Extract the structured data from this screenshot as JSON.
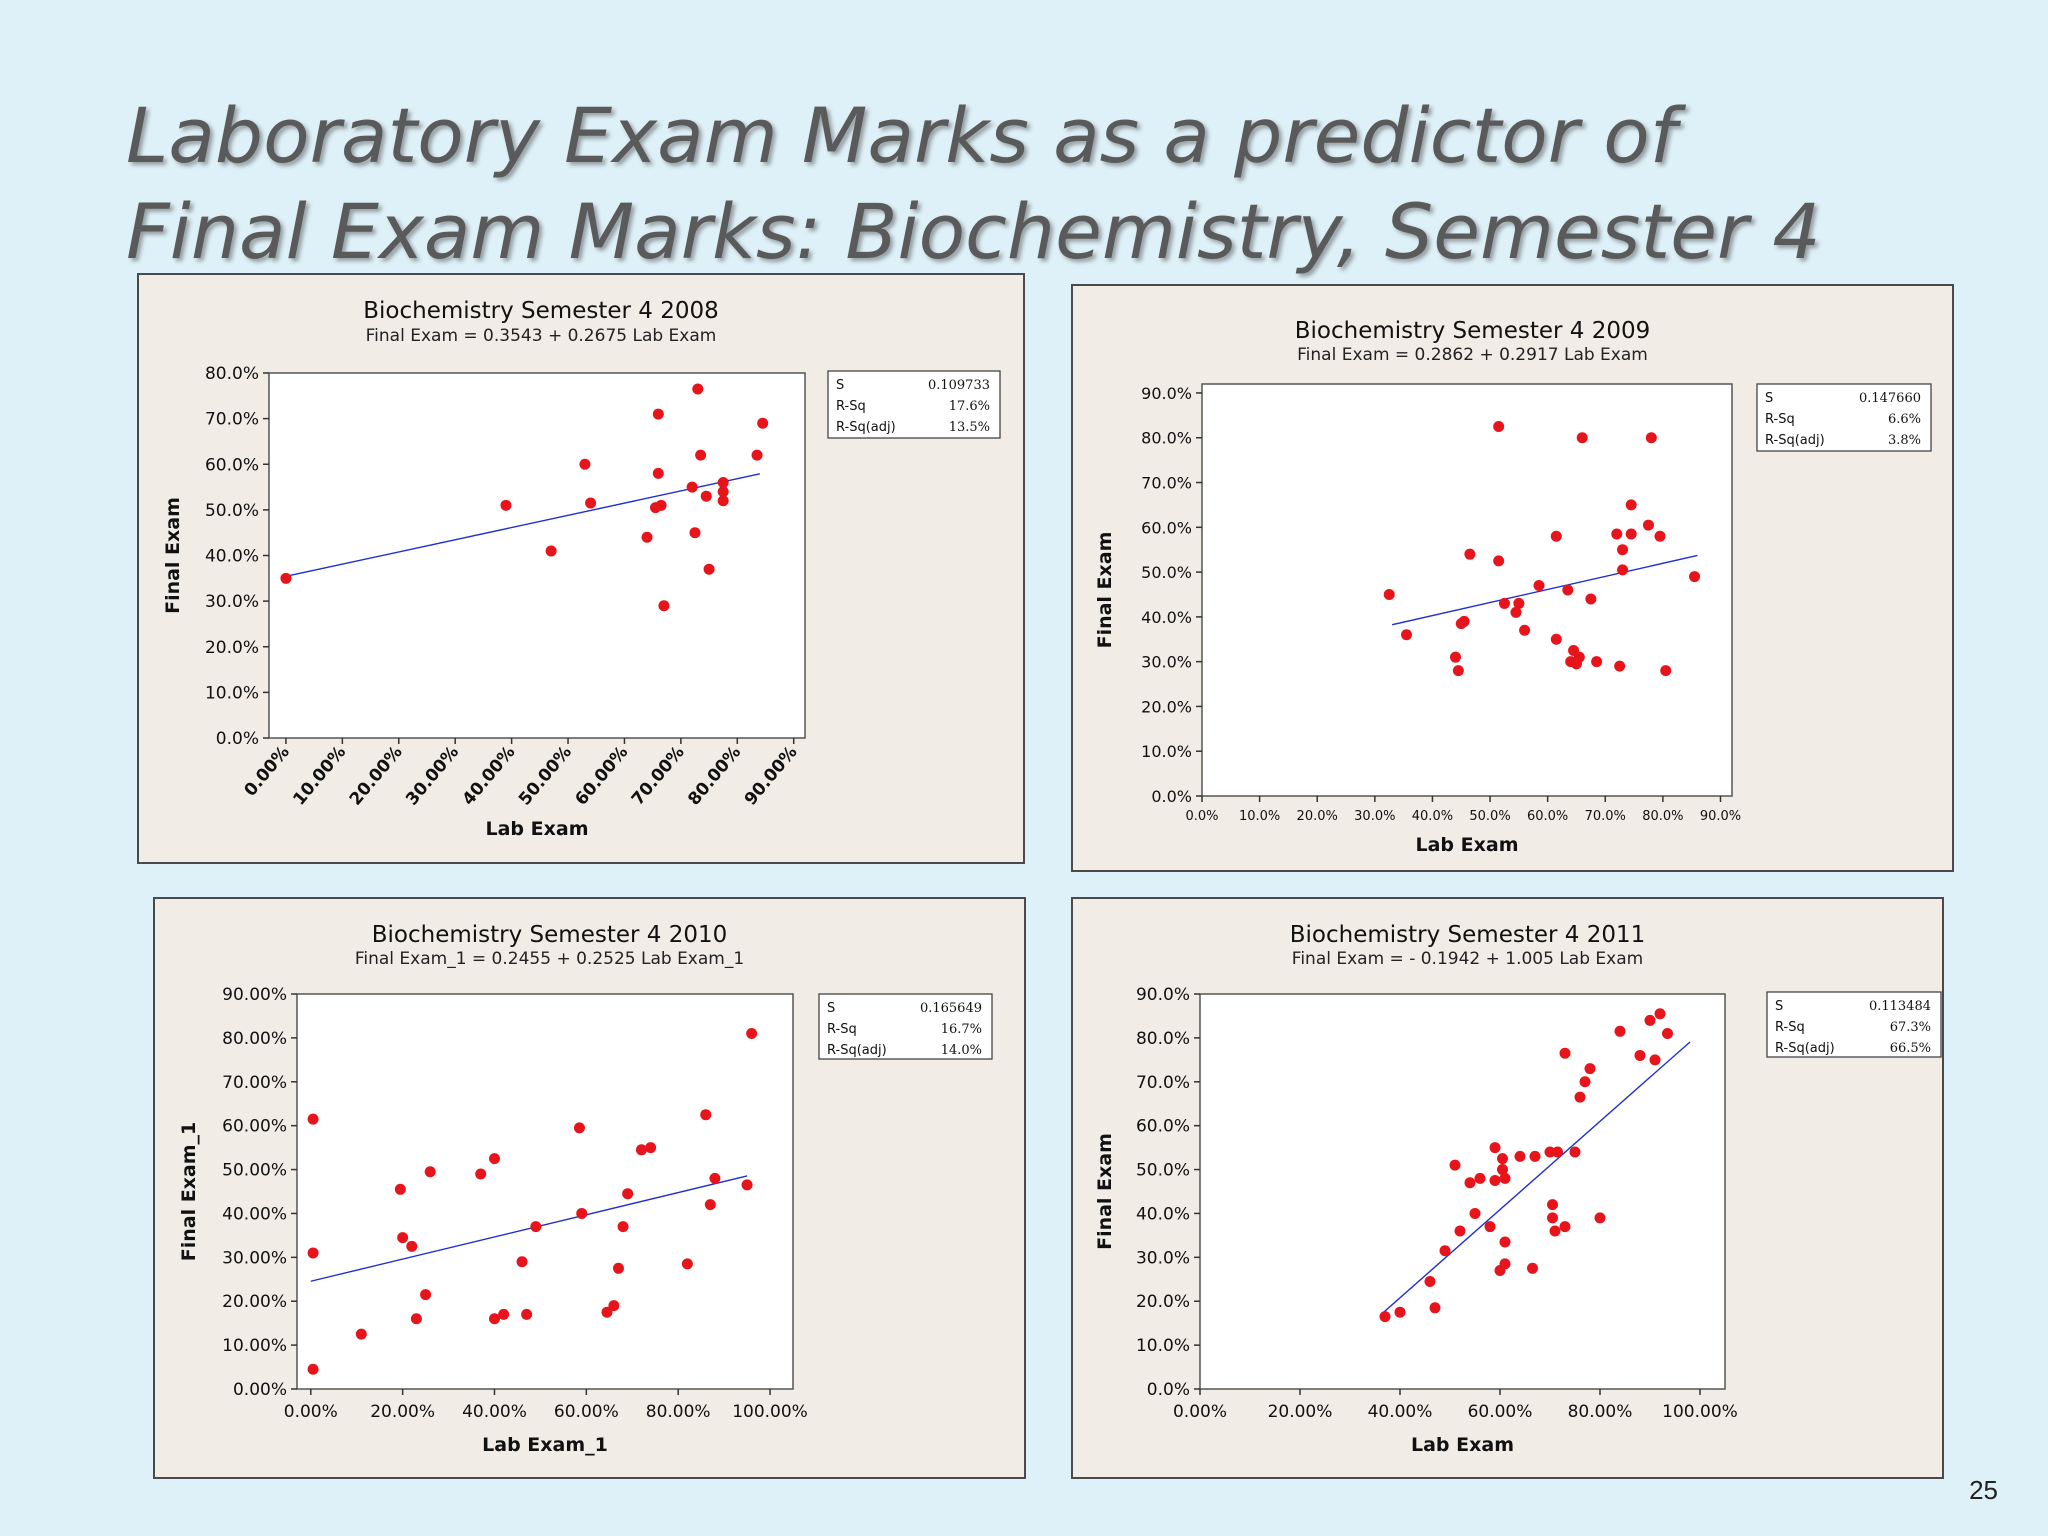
{
  "slide": {
    "title_line1": "Laboratory  Exam Marks as a predictor of",
    "title_line2": "Final Exam Marks: Biochemistry, Semester 4",
    "page_number": "25"
  },
  "colors": {
    "point": "#e8141b",
    "fit_line": "#1f2fcf",
    "panel_bg": "#f1ece5",
    "slide_bg": "#dff1f8"
  },
  "chart_data": [
    {
      "type": "scatter",
      "title": "Biochemistry Semester 4 2008",
      "equation": "Final Exam =  0.3543 + 0.2675 Lab Exam",
      "xlabel": "Lab Exam",
      "ylabel": "Final Exam",
      "xlim": [
        -0.03,
        0.92
      ],
      "ylim": [
        0,
        0.8
      ],
      "xticks": [
        0,
        0.1,
        0.2,
        0.3,
        0.4,
        0.5,
        0.6,
        0.7,
        0.8,
        0.9
      ],
      "xtick_labels": [
        "0.00%",
        "10.00%",
        "20.00%",
        "30.00%",
        "40.00%",
        "50.00%",
        "60.00%",
        "70.00%",
        "80.00%",
        "90.00%"
      ],
      "yticks": [
        0,
        0.1,
        0.2,
        0.3,
        0.4,
        0.5,
        0.6,
        0.7,
        0.8
      ],
      "ytick_labels": [
        "0.0%",
        "10.0%",
        "20.0%",
        "30.0%",
        "40.0%",
        "50.0%",
        "60.0%",
        "70.0%",
        "80.0%"
      ],
      "fit": {
        "intercept": 0.3543,
        "slope": 0.2675,
        "x_range": [
          0,
          0.84
        ]
      },
      "stats": [
        [
          "S",
          "0.109733"
        ],
        [
          "R-Sq",
          "17.6%"
        ],
        [
          "R-Sq(adj)",
          "13.5%"
        ]
      ],
      "points": [
        [
          0.0,
          0.35
        ],
        [
          0.39,
          0.51
        ],
        [
          0.47,
          0.41
        ],
        [
          0.53,
          0.6
        ],
        [
          0.54,
          0.515
        ],
        [
          0.64,
          0.44
        ],
        [
          0.655,
          0.505
        ],
        [
          0.66,
          0.71
        ],
        [
          0.66,
          0.58
        ],
        [
          0.665,
          0.51
        ],
        [
          0.67,
          0.29
        ],
        [
          0.72,
          0.55
        ],
        [
          0.725,
          0.45
        ],
        [
          0.73,
          0.765
        ],
        [
          0.735,
          0.62
        ],
        [
          0.745,
          0.53
        ],
        [
          0.75,
          0.37
        ],
        [
          0.775,
          0.52
        ],
        [
          0.775,
          0.54
        ],
        [
          0.775,
          0.56
        ],
        [
          0.835,
          0.62
        ],
        [
          0.845,
          0.69
        ]
      ]
    },
    {
      "type": "scatter",
      "title": "Biochemistry Semester 4 2009",
      "equation": "Final Exam =  0.2862 + 0.2917 Lab Exam",
      "xlabel": "Lab Exam",
      "ylabel": "Final Exam",
      "xlim": [
        0,
        0.92
      ],
      "ylim": [
        0,
        0.92
      ],
      "xticks": [
        0,
        0.1,
        0.2,
        0.3,
        0.4,
        0.5,
        0.6,
        0.7,
        0.8,
        0.9
      ],
      "xtick_labels": [
        "0.0%",
        "10.0%",
        "20.0%",
        "30.0%",
        "40.0%",
        "50.0%",
        "60.0%",
        "70.0%",
        "80.0%",
        "90.0%"
      ],
      "yticks": [
        0,
        0.1,
        0.2,
        0.3,
        0.4,
        0.5,
        0.6,
        0.7,
        0.8,
        0.9
      ],
      "ytick_labels": [
        "0.0%",
        "10.0%",
        "20.0%",
        "30.0%",
        "40.0%",
        "50.0%",
        "60.0%",
        "70.0%",
        "80.0%",
        "90.0%"
      ],
      "fit": {
        "intercept": 0.2862,
        "slope": 0.2917,
        "x_range": [
          0.33,
          0.86
        ]
      },
      "stats": [
        [
          "S",
          "0.147660"
        ],
        [
          "R-Sq",
          "6.6%"
        ],
        [
          "R-Sq(adj)",
          "3.8%"
        ]
      ],
      "points": [
        [
          0.325,
          0.45
        ],
        [
          0.355,
          0.36
        ],
        [
          0.44,
          0.31
        ],
        [
          0.445,
          0.28
        ],
        [
          0.45,
          0.385
        ],
        [
          0.455,
          0.39
        ],
        [
          0.465,
          0.54
        ],
        [
          0.515,
          0.825
        ],
        [
          0.515,
          0.525
        ],
        [
          0.525,
          0.43
        ],
        [
          0.545,
          0.41
        ],
        [
          0.55,
          0.43
        ],
        [
          0.56,
          0.37
        ],
        [
          0.585,
          0.47
        ],
        [
          0.615,
          0.35
        ],
        [
          0.615,
          0.58
        ],
        [
          0.635,
          0.46
        ],
        [
          0.64,
          0.3
        ],
        [
          0.645,
          0.325
        ],
        [
          0.65,
          0.295
        ],
        [
          0.655,
          0.31
        ],
        [
          0.66,
          0.8
        ],
        [
          0.675,
          0.44
        ],
        [
          0.685,
          0.3
        ],
        [
          0.72,
          0.585
        ],
        [
          0.725,
          0.29
        ],
        [
          0.73,
          0.505
        ],
        [
          0.73,
          0.55
        ],
        [
          0.745,
          0.585
        ],
        [
          0.745,
          0.65
        ],
        [
          0.775,
          0.605
        ],
        [
          0.78,
          0.8
        ],
        [
          0.795,
          0.58
        ],
        [
          0.805,
          0.28
        ],
        [
          0.855,
          0.49
        ]
      ]
    },
    {
      "type": "scatter",
      "title": "Biochemistry Semester 4 2010",
      "equation": "Final Exam_1 =  0.2455 + 0.2525 Lab Exam_1",
      "xlabel": "Lab Exam_1",
      "ylabel": "Final Exam_1",
      "xlim": [
        -0.03,
        1.05
      ],
      "ylim": [
        0,
        0.9
      ],
      "xticks": [
        0,
        0.2,
        0.4,
        0.6,
        0.8,
        1.0
      ],
      "xtick_labels": [
        "0.00%",
        "20.00%",
        "40.00%",
        "60.00%",
        "80.00%",
        "100.00%"
      ],
      "yticks": [
        0,
        0.1,
        0.2,
        0.3,
        0.4,
        0.5,
        0.6,
        0.7,
        0.8,
        0.9
      ],
      "ytick_labels": [
        "0.00%",
        "10.00%",
        "20.00%",
        "30.00%",
        "40.00%",
        "50.00%",
        "60.00%",
        "70.00%",
        "80.00%",
        "90.00%"
      ],
      "fit": {
        "intercept": 0.2455,
        "slope": 0.2525,
        "x_range": [
          0,
          0.95
        ]
      },
      "stats": [
        [
          "S",
          "0.165649"
        ],
        [
          "R-Sq",
          "16.7%"
        ],
        [
          "R-Sq(adj)",
          "14.0%"
        ]
      ],
      "points": [
        [
          0.005,
          0.615
        ],
        [
          0.005,
          0.31
        ],
        [
          0.005,
          0.045
        ],
        [
          0.11,
          0.125
        ],
        [
          0.195,
          0.455
        ],
        [
          0.2,
          0.345
        ],
        [
          0.22,
          0.325
        ],
        [
          0.23,
          0.16
        ],
        [
          0.25,
          0.215
        ],
        [
          0.26,
          0.495
        ],
        [
          0.37,
          0.49
        ],
        [
          0.4,
          0.525
        ],
        [
          0.4,
          0.16
        ],
        [
          0.42,
          0.17
        ],
        [
          0.46,
          0.29
        ],
        [
          0.47,
          0.17
        ],
        [
          0.49,
          0.37
        ],
        [
          0.585,
          0.595
        ],
        [
          0.59,
          0.4
        ],
        [
          0.645,
          0.175
        ],
        [
          0.66,
          0.19
        ],
        [
          0.67,
          0.275
        ],
        [
          0.68,
          0.37
        ],
        [
          0.69,
          0.445
        ],
        [
          0.72,
          0.545
        ],
        [
          0.74,
          0.55
        ],
        [
          0.82,
          0.285
        ],
        [
          0.86,
          0.625
        ],
        [
          0.87,
          0.42
        ],
        [
          0.88,
          0.48
        ],
        [
          0.95,
          0.465
        ],
        [
          0.96,
          0.81
        ]
      ]
    },
    {
      "type": "scatter",
      "title": "Biochemistry Semester 4 2011",
      "equation": "Final Exam =  - 0.1942 + 1.005 Lab Exam",
      "xlabel": "Lab Exam",
      "ylabel": "Final Exam",
      "xlim": [
        0,
        1.05
      ],
      "ylim": [
        0,
        0.9
      ],
      "xticks": [
        0,
        0.2,
        0.4,
        0.6,
        0.8,
        1.0
      ],
      "xtick_labels": [
        "0.00%",
        "20.00%",
        "40.00%",
        "60.00%",
        "80.00%",
        "100.00%"
      ],
      "yticks": [
        0,
        0.1,
        0.2,
        0.3,
        0.4,
        0.5,
        0.6,
        0.7,
        0.8,
        0.9
      ],
      "ytick_labels": [
        "0.0%",
        "10.0%",
        "20.0%",
        "30.0%",
        "40.0%",
        "50.0%",
        "60.0%",
        "70.0%",
        "80.0%",
        "90.0%"
      ],
      "fit": {
        "intercept": -0.1942,
        "slope": 1.005,
        "x_range": [
          0.365,
          0.98
        ]
      },
      "stats": [
        [
          "S",
          "0.113484"
        ],
        [
          "R-Sq",
          "67.3%"
        ],
        [
          "R-Sq(adj)",
          "66.5%"
        ]
      ],
      "points": [
        [
          0.37,
          0.165
        ],
        [
          0.4,
          0.175
        ],
        [
          0.46,
          0.245
        ],
        [
          0.47,
          0.185
        ],
        [
          0.49,
          0.315
        ],
        [
          0.51,
          0.51
        ],
        [
          0.52,
          0.36
        ],
        [
          0.54,
          0.47
        ],
        [
          0.55,
          0.4
        ],
        [
          0.56,
          0.48
        ],
        [
          0.58,
          0.37
        ],
        [
          0.59,
          0.475
        ],
        [
          0.59,
          0.55
        ],
        [
          0.6,
          0.27
        ],
        [
          0.605,
          0.5
        ],
        [
          0.605,
          0.525
        ],
        [
          0.61,
          0.285
        ],
        [
          0.61,
          0.335
        ],
        [
          0.61,
          0.48
        ],
        [
          0.64,
          0.53
        ],
        [
          0.67,
          0.53
        ],
        [
          0.665,
          0.275
        ],
        [
          0.7,
          0.54
        ],
        [
          0.705,
          0.39
        ],
        [
          0.705,
          0.42
        ],
        [
          0.71,
          0.36
        ],
        [
          0.715,
          0.54
        ],
        [
          0.73,
          0.37
        ],
        [
          0.73,
          0.765
        ],
        [
          0.75,
          0.54
        ],
        [
          0.76,
          0.665
        ],
        [
          0.77,
          0.7
        ],
        [
          0.78,
          0.73
        ],
        [
          0.8,
          0.39
        ],
        [
          0.84,
          0.815
        ],
        [
          0.88,
          0.76
        ],
        [
          0.9,
          0.84
        ],
        [
          0.91,
          0.75
        ],
        [
          0.92,
          0.855
        ],
        [
          0.935,
          0.81
        ]
      ]
    }
  ]
}
